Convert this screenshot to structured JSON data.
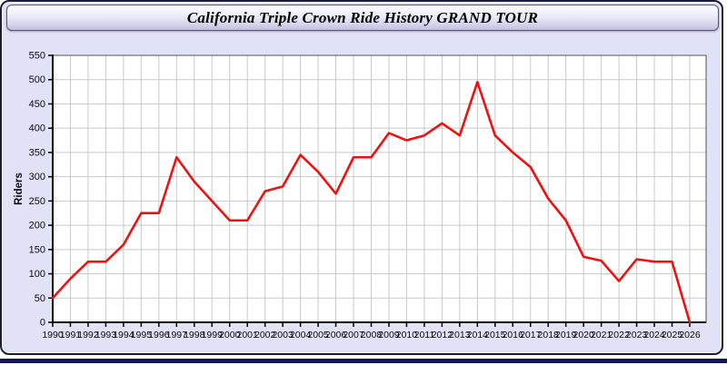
{
  "window": {
    "title": "California Triple Crown Ride History GRAND TOUR"
  },
  "colors": {
    "card_bg": "#e2e2f6",
    "plot_bg": "#ffffff",
    "grid": "#c9c9c9",
    "axis": "#000000",
    "box": "#555555",
    "line": "#ee1111",
    "tick_label": "#0a0a14",
    "bottom_strip": "#15155e"
  },
  "chart_data": {
    "type": "line",
    "title": "California Triple Crown Ride History GRAND TOUR",
    "xlabel": "",
    "ylabel": "Riders",
    "legend": "none",
    "grid": true,
    "ylim": [
      0,
      550
    ],
    "ytick_step": 50,
    "x": [
      1990,
      1991,
      1992,
      1993,
      1994,
      1995,
      1996,
      1997,
      1998,
      1999,
      2000,
      2001,
      2002,
      2003,
      2004,
      2005,
      2006,
      2007,
      2008,
      2009,
      2010,
      2011,
      2012,
      2013,
      2014,
      2015,
      2016,
      2017,
      2018,
      2019,
      2020,
      2021,
      2022,
      2023,
      2024,
      2025,
      2026
    ],
    "series": [
      {
        "name": "Riders",
        "values": [
          50,
          90,
          125,
          125,
          160,
          225,
          225,
          340,
          290,
          250,
          210,
          210,
          270,
          280,
          345,
          310,
          265,
          340,
          340,
          390,
          375,
          385,
          410,
          385,
          495,
          385,
          350,
          320,
          255,
          210,
          135,
          127,
          85,
          130,
          125,
          125,
          0
        ]
      }
    ]
  }
}
